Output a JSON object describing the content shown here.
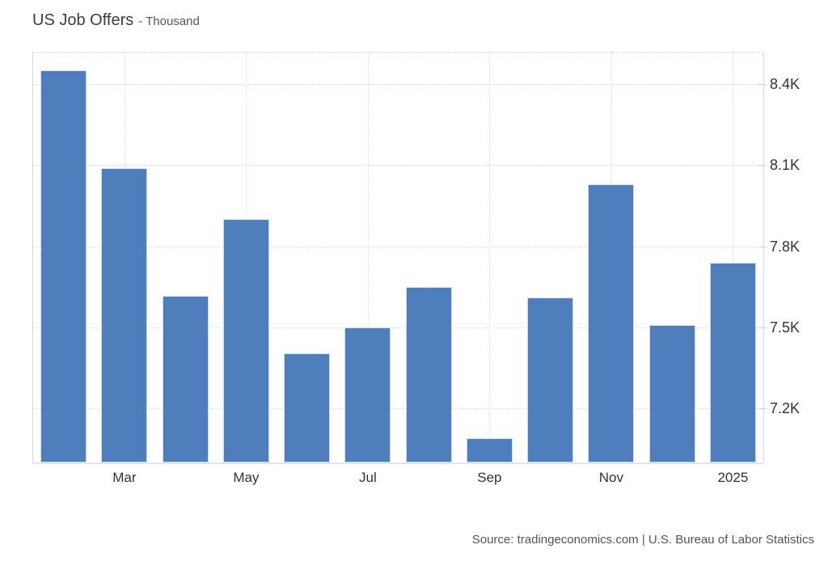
{
  "page": {
    "title": "US Job Offers",
    "subtitle": "- Thousand",
    "source": "Source: tradingeconomics.com | U.S. Bureau of Labor Statistics"
  },
  "colors": {
    "bar": "#4e7ebb",
    "bar_border": "#cddcee",
    "grid": "#d9d9d9",
    "axis": "#d6d6d6",
    "baseline": "#e4e4e4",
    "title_text": "#3d3d3d",
    "tick_text": "#333333",
    "muted_text": "#555555"
  },
  "chart_data": {
    "type": "bar",
    "title": "US Job Offers",
    "unit": "Thousand",
    "x_labels": [
      "",
      "Mar",
      "",
      "May",
      "",
      "Jul",
      "",
      "Sep",
      "",
      "Nov",
      "",
      "2025"
    ],
    "values": [
      8450,
      8090,
      7615,
      7900,
      7405,
      7500,
      7650,
      7090,
      7610,
      8030,
      7508,
      7740
    ],
    "yticks": [
      {
        "value": 8400,
        "label": "8.4K"
      },
      {
        "value": 8100,
        "label": "8.1K"
      },
      {
        "value": 7800,
        "label": "7.8K"
      },
      {
        "value": 7500,
        "label": "7.5K"
      },
      {
        "value": 7200,
        "label": "7.2K"
      }
    ],
    "ylim": [
      7000,
      8520
    ],
    "grid": true,
    "legend": "none",
    "source": "Source: tradingeconomics.com | U.S. Bureau of Labor Statistics"
  }
}
